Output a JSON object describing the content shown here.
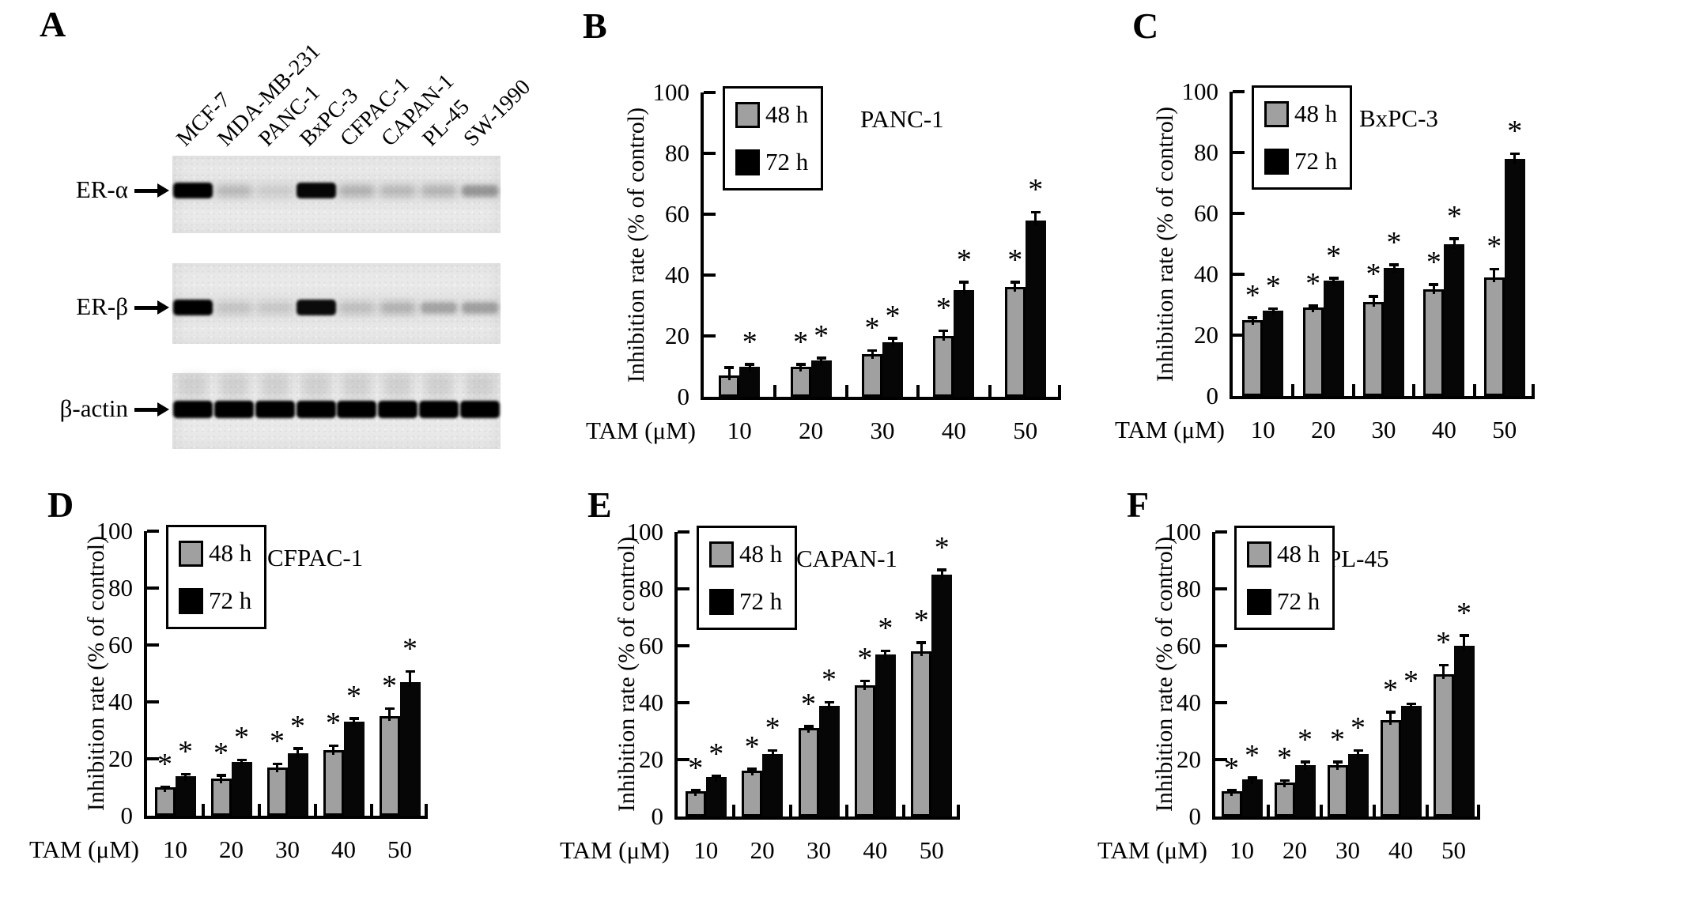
{
  "panel_a": {
    "panel": "A",
    "lanes": [
      "MCF-7",
      "MDA-MB-231",
      "PANC-1",
      "BxPC-3",
      "CFPAC-1",
      "CAPAN-1",
      "PL-45",
      "SW-1990"
    ],
    "rows": [
      {
        "label": "ER-α",
        "bands": [
          1.0,
          0.18,
          0.08,
          0.85,
          0.22,
          0.18,
          0.2,
          0.35
        ]
      },
      {
        "label": "ER-β",
        "bands": [
          1.0,
          0.12,
          0.1,
          0.75,
          0.15,
          0.22,
          0.28,
          0.3
        ]
      },
      {
        "label": "β-actin",
        "bands": [
          1.0,
          1.0,
          1.0,
          1.0,
          1.0,
          1.0,
          1.0,
          1.0
        ]
      }
    ]
  },
  "chart_data": [
    {
      "type": "bar",
      "panel": "B",
      "title": "PANC-1",
      "xlabel": "TAM (μM)",
      "ylabel": "Inhibition rate (% of control)",
      "ylim": [
        0,
        100
      ],
      "yticks": [
        0,
        20,
        40,
        60,
        80,
        100
      ],
      "grid": false,
      "legend_position": "top-left",
      "categories": [
        "10",
        "20",
        "30",
        "40",
        "50"
      ],
      "series": [
        {
          "name": "48 h",
          "color": "#a0a0a0",
          "values": [
            7,
            10,
            14,
            20,
            36
          ],
          "errors": [
            3,
            1,
            1.5,
            2,
            2
          ],
          "significant": [
            false,
            true,
            true,
            true,
            true
          ]
        },
        {
          "name": "72 h",
          "color": "#060606",
          "values": [
            10,
            12,
            18,
            35,
            58
          ],
          "errors": [
            1,
            1,
            1.5,
            3,
            3
          ],
          "significant": [
            true,
            true,
            true,
            true,
            true
          ]
        }
      ]
    },
    {
      "type": "bar",
      "panel": "C",
      "title": "BxPC-3",
      "xlabel": "TAM (μM)",
      "ylabel": "Inhibition rate (% of control)",
      "ylim": [
        0,
        100
      ],
      "yticks": [
        0,
        20,
        40,
        60,
        80,
        100
      ],
      "grid": false,
      "legend_position": "top-left",
      "categories": [
        "10",
        "20",
        "30",
        "40",
        "50"
      ],
      "series": [
        {
          "name": "48 h",
          "color": "#a0a0a0",
          "values": [
            25,
            29,
            31,
            35,
            39
          ],
          "errors": [
            1,
            1,
            2,
            2,
            3
          ],
          "significant": [
            true,
            true,
            true,
            true,
            true
          ]
        },
        {
          "name": "72 h",
          "color": "#060606",
          "values": [
            28,
            38,
            42,
            50,
            78
          ],
          "errors": [
            1,
            1,
            1.5,
            2,
            2
          ],
          "significant": [
            true,
            true,
            true,
            true,
            true
          ]
        }
      ]
    },
    {
      "type": "bar",
      "panel": "D",
      "title": "CFPAC-1",
      "xlabel": "TAM (μM)",
      "ylabel": "Inhibition rate (% of control)",
      "ylim": [
        0,
        100
      ],
      "yticks": [
        0,
        20,
        40,
        60,
        80,
        100
      ],
      "grid": false,
      "legend_position": "top-left",
      "categories": [
        "10",
        "20",
        "30",
        "40",
        "50"
      ],
      "series": [
        {
          "name": "48 h",
          "color": "#a0a0a0",
          "values": [
            10,
            13,
            17,
            23,
            35
          ],
          "errors": [
            0.5,
            1.5,
            1.5,
            2,
            3
          ],
          "significant": [
            true,
            true,
            true,
            true,
            true
          ]
        },
        {
          "name": "72 h",
          "color": "#060606",
          "values": [
            14,
            19,
            22,
            33,
            47
          ],
          "errors": [
            1,
            1,
            2,
            1.5,
            4
          ],
          "significant": [
            true,
            true,
            true,
            true,
            true
          ]
        }
      ]
    },
    {
      "type": "bar",
      "panel": "E",
      "title": "CAPAN-1",
      "xlabel": "TAM (μM)",
      "ylabel": "Inhibition rate (% of control)",
      "ylim": [
        0,
        100
      ],
      "yticks": [
        0,
        20,
        40,
        60,
        80,
        100
      ],
      "grid": false,
      "legend_position": "top-left",
      "categories": [
        "10",
        "20",
        "30",
        "40",
        "50"
      ],
      "series": [
        {
          "name": "48 h",
          "color": "#a0a0a0",
          "values": [
            9,
            16,
            31,
            46,
            58
          ],
          "errors": [
            0.5,
            1,
            1,
            2,
            3.5
          ],
          "significant": [
            true,
            true,
            true,
            true,
            true
          ]
        },
        {
          "name": "72 h",
          "color": "#060606",
          "values": [
            14,
            22,
            39,
            57,
            85
          ],
          "errors": [
            0.5,
            1.5,
            1.5,
            1.5,
            2
          ],
          "significant": [
            true,
            true,
            true,
            true,
            true
          ]
        }
      ]
    },
    {
      "type": "bar",
      "panel": "F",
      "title": "PL-45",
      "xlabel": "TAM (μM)",
      "ylabel": "Inhibition rate (% of control)",
      "ylim": [
        0,
        100
      ],
      "yticks": [
        0,
        20,
        40,
        60,
        80,
        100
      ],
      "grid": false,
      "legend_position": "top-left",
      "categories": [
        "10",
        "20",
        "30",
        "40",
        "50"
      ],
      "series": [
        {
          "name": "48 h",
          "color": "#a0a0a0",
          "values": [
            9,
            12,
            18,
            34,
            50
          ],
          "errors": [
            0.5,
            1,
            1.5,
            3,
            3.5
          ],
          "significant": [
            true,
            true,
            true,
            true,
            true
          ]
        },
        {
          "name": "72 h",
          "color": "#060606",
          "values": [
            13,
            18,
            22,
            39,
            60
          ],
          "errors": [
            1,
            1.5,
            1.5,
            1,
            4
          ],
          "significant": [
            true,
            true,
            true,
            true,
            true
          ]
        }
      ]
    }
  ]
}
